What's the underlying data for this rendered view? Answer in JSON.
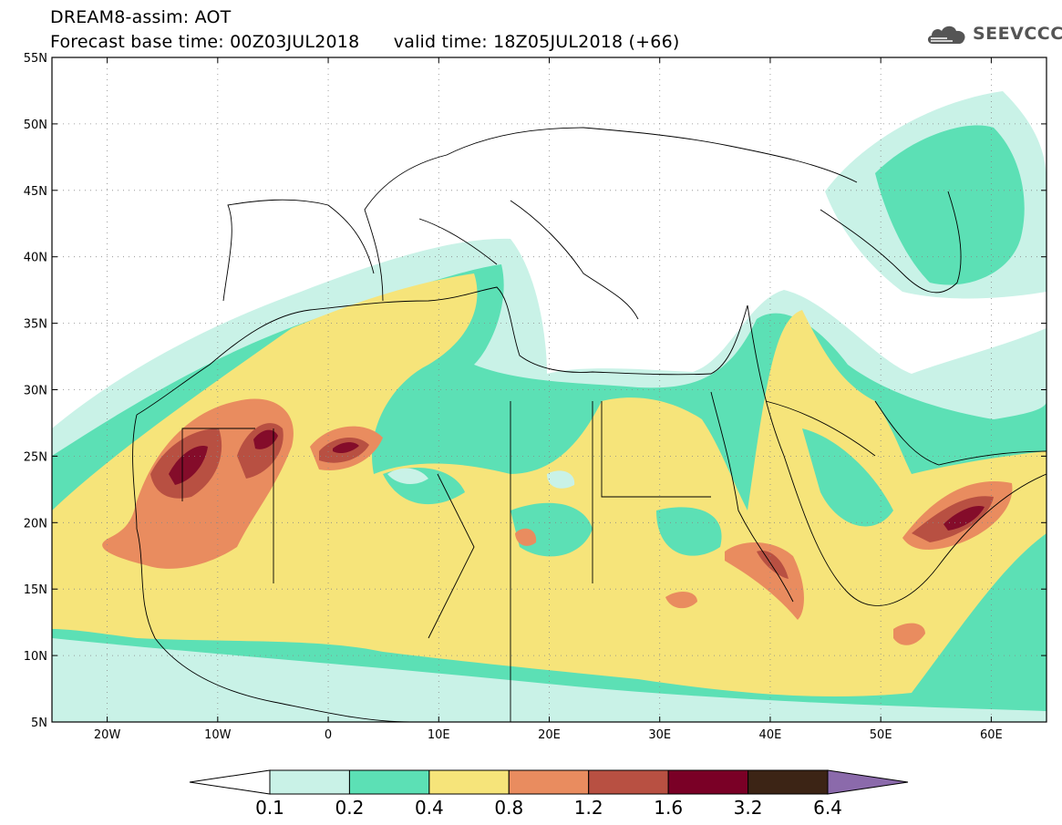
{
  "header": {
    "line1": "DREAM8-assim: AOT",
    "line2": "Forecast base time: 00Z03JUL2018      valid time: 18Z05JUL2018 (+66)"
  },
  "logo": {
    "text": "SEEVCCC",
    "icon": "cloud-icon",
    "color": "#555555"
  },
  "map": {
    "lon_range": [
      -25,
      65
    ],
    "lat_range": [
      5,
      55
    ],
    "lat_ticks": [
      {
        "value": 55,
        "label": "55N"
      },
      {
        "value": 50,
        "label": "50N"
      },
      {
        "value": 45,
        "label": "45N"
      },
      {
        "value": 40,
        "label": "40N"
      },
      {
        "value": 35,
        "label": "35N"
      },
      {
        "value": 30,
        "label": "30N"
      },
      {
        "value": 25,
        "label": "25N"
      },
      {
        "value": 20,
        "label": "20N"
      },
      {
        "value": 15,
        "label": "15N"
      },
      {
        "value": 10,
        "label": "10N"
      },
      {
        "value": 5,
        "label": "5N"
      }
    ],
    "lon_ticks": [
      {
        "value": -20,
        "label": "20W"
      },
      {
        "value": -10,
        "label": "10W"
      },
      {
        "value": 0,
        "label": "0"
      },
      {
        "value": 10,
        "label": "10E"
      },
      {
        "value": 20,
        "label": "20E"
      },
      {
        "value": 30,
        "label": "30E"
      },
      {
        "value": 40,
        "label": "40E"
      },
      {
        "value": 50,
        "label": "50E"
      },
      {
        "value": 60,
        "label": "60E"
      }
    ]
  },
  "colorbar": {
    "labels": [
      "0.1",
      "0.2",
      "0.4",
      "0.8",
      "1.2",
      "1.6",
      "3.2",
      "6.4"
    ],
    "colors": [
      "#ffffff",
      "#c9f2e7",
      "#5ce0b5",
      "#f6e47a",
      "#e98c5f",
      "#b85042",
      "#7a0026",
      "#3c2415",
      "#8b6aab"
    ]
  },
  "levels": {
    "c1": "#c9f2e7",
    "c2": "#5ce0b5",
    "c3": "#f6e47a",
    "c4": "#e98c5f",
    "c5": "#b85042",
    "c6": "#7a0026"
  }
}
